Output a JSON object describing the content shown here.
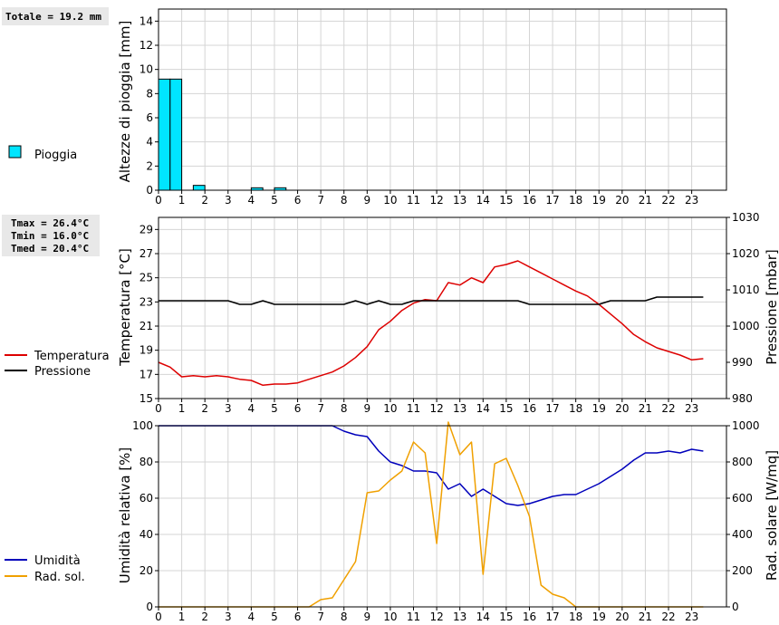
{
  "summary": {
    "rain_total": "Totale = 19.2 mm",
    "tmax": "Tmax = 26.4°C",
    "tmin": "Tmin = 16.0°C",
    "tmed": "Tmed = 20.4°C"
  },
  "colors": {
    "rain": "#00e5ff",
    "temperature": "#dd0000",
    "pressure": "#000000",
    "humidity": "#0000bb",
    "radiation": "#f0a000",
    "summary_bg": "#e8e8e8"
  },
  "chart_data": [
    {
      "type": "bar",
      "ylabel": "Altezze di pioggia [mm]",
      "ylim": [
        0,
        15
      ],
      "yticks": [
        0,
        2,
        4,
        6,
        8,
        10,
        12,
        14
      ],
      "xlim": [
        0,
        24.5
      ],
      "xticks": [
        0,
        1,
        2,
        3,
        4,
        5,
        6,
        7,
        8,
        9,
        10,
        11,
        12,
        13,
        14,
        15,
        16,
        17,
        18,
        19,
        20,
        21,
        22,
        23
      ],
      "bar_width": 0.5,
      "legend": [
        "Pioggia"
      ],
      "series": [
        {
          "name": "Pioggia",
          "x": [
            0,
            0.5,
            1.5,
            4.0,
            5.0
          ],
          "values": [
            9.2,
            9.2,
            0.4,
            0.2,
            0.2
          ]
        }
      ]
    },
    {
      "type": "line",
      "ylabel": "Temperatura [°C]",
      "ylabel_right": "Pressione [mbar]",
      "ylim": [
        15,
        30
      ],
      "yticks": [
        15,
        17,
        19,
        21,
        23,
        25,
        27,
        29
      ],
      "ylim_right": [
        980,
        1030
      ],
      "yticks_right": [
        980,
        990,
        1000,
        1010,
        1020,
        1030
      ],
      "xlim": [
        0,
        24.5
      ],
      "xticks": [
        0,
        1,
        2,
        3,
        4,
        5,
        6,
        7,
        8,
        9,
        10,
        11,
        12,
        13,
        14,
        15,
        16,
        17,
        18,
        19,
        20,
        21,
        22,
        23
      ],
      "legend": [
        "Temperatura",
        "Pressione"
      ],
      "series": [
        {
          "name": "Temperatura",
          "axis": "left",
          "x": [
            0,
            0.5,
            1,
            1.5,
            2,
            2.5,
            3,
            3.5,
            4,
            4.5,
            5,
            5.5,
            6,
            6.5,
            7,
            7.5,
            8,
            8.5,
            9,
            9.5,
            10,
            10.5,
            11,
            11.5,
            12,
            12.5,
            13,
            13.5,
            14,
            14.5,
            15,
            15.5,
            16,
            16.5,
            17,
            17.5,
            18,
            18.5,
            19,
            19.5,
            20,
            20.5,
            21,
            21.5,
            22,
            22.5,
            23,
            23.5
          ],
          "values": [
            18.0,
            17.6,
            16.8,
            16.9,
            16.8,
            16.9,
            16.8,
            16.6,
            16.5,
            16.1,
            16.2,
            16.2,
            16.3,
            16.6,
            16.9,
            17.2,
            17.7,
            18.4,
            19.3,
            20.7,
            21.4,
            22.3,
            22.9,
            23.2,
            23.1,
            24.6,
            24.4,
            25.0,
            24.6,
            25.9,
            26.1,
            26.4,
            25.9,
            25.4,
            24.9,
            24.4,
            23.9,
            23.5,
            22.8,
            22.0,
            21.2,
            20.3,
            19.7,
            19.2,
            18.9,
            18.6,
            18.2,
            18.3
          ]
        },
        {
          "name": "Pressione",
          "axis": "right",
          "x": [
            0,
            0.5,
            1,
            1.5,
            2,
            2.5,
            3,
            3.5,
            4,
            4.5,
            5,
            5.5,
            6,
            6.5,
            7,
            7.5,
            8,
            8.5,
            9,
            9.5,
            10,
            10.5,
            11,
            11.5,
            12,
            12.5,
            13,
            13.5,
            14,
            14.5,
            15,
            15.5,
            16,
            16.5,
            17,
            17.5,
            18,
            18.5,
            19,
            19.5,
            20,
            20.5,
            21,
            21.5,
            22,
            22.5,
            23,
            23.5
          ],
          "values": [
            1007,
            1007,
            1007,
            1007,
            1007,
            1007,
            1007,
            1006,
            1006,
            1007,
            1006,
            1006,
            1006,
            1006,
            1006,
            1006,
            1006,
            1007,
            1006,
            1007,
            1006,
            1006,
            1007,
            1007,
            1007,
            1007,
            1007,
            1007,
            1007,
            1007,
            1007,
            1007,
            1006,
            1006,
            1006,
            1006,
            1006,
            1006,
            1006,
            1007,
            1007,
            1007,
            1007,
            1008,
            1008,
            1008,
            1008,
            1008
          ]
        }
      ]
    },
    {
      "type": "line",
      "ylabel": "Umidità relativa [%]",
      "ylabel_right": "Rad. solare [W/mq]",
      "ylim": [
        0,
        100
      ],
      "yticks": [
        0,
        20,
        40,
        60,
        80,
        100
      ],
      "ylim_right": [
        0,
        1000
      ],
      "yticks_right": [
        0,
        200,
        400,
        600,
        800,
        1000
      ],
      "xlim": [
        0,
        24.5
      ],
      "xticks": [
        0,
        1,
        2,
        3,
        4,
        5,
        6,
        7,
        8,
        9,
        10,
        11,
        12,
        13,
        14,
        15,
        16,
        17,
        18,
        19,
        20,
        21,
        22,
        23
      ],
      "legend": [
        "Umidità",
        "Rad. sol."
      ],
      "series": [
        {
          "name": "Umidità",
          "axis": "left",
          "x": [
            0,
            0.5,
            1,
            1.5,
            2,
            2.5,
            3,
            3.5,
            4,
            4.5,
            5,
            5.5,
            6,
            6.5,
            7,
            7.5,
            8,
            8.5,
            9,
            9.5,
            10,
            10.5,
            11,
            11.5,
            12,
            12.5,
            13,
            13.5,
            14,
            14.5,
            15,
            15.5,
            16,
            16.5,
            17,
            17.5,
            18,
            18.5,
            19,
            19.5,
            20,
            20.5,
            21,
            21.5,
            22,
            22.5,
            23,
            23.5
          ],
          "values": [
            100,
            100,
            100,
            100,
            100,
            100,
            100,
            100,
            100,
            100,
            100,
            100,
            100,
            100,
            100,
            100,
            97,
            95,
            94,
            86,
            80,
            78,
            75,
            75,
            74,
            65,
            68,
            61,
            65,
            61,
            57,
            56,
            57,
            59,
            61,
            62,
            62,
            65,
            68,
            72,
            76,
            81,
            85,
            85,
            86,
            85,
            87,
            86
          ]
        },
        {
          "name": "Rad. sol.",
          "axis": "right",
          "x": [
            0,
            0.5,
            1,
            1.5,
            2,
            2.5,
            3,
            3.5,
            4,
            4.5,
            5,
            5.5,
            6,
            6.5,
            7,
            7.5,
            8,
            8.5,
            9,
            9.5,
            10,
            10.5,
            11,
            11.5,
            12,
            12.5,
            13,
            13.5,
            14,
            14.5,
            15,
            15.5,
            16,
            16.5,
            17,
            17.5,
            18,
            18.5,
            19,
            19.5,
            20,
            20.5,
            21,
            21.5,
            22,
            22.5,
            23,
            23.5
          ],
          "values": [
            0,
            0,
            0,
            0,
            0,
            0,
            0,
            0,
            0,
            0,
            0,
            0,
            0,
            0,
            40,
            50,
            150,
            250,
            630,
            640,
            700,
            750,
            910,
            850,
            350,
            1020,
            840,
            910,
            180,
            790,
            820,
            670,
            500,
            120,
            70,
            50,
            0,
            0,
            0,
            0,
            0,
            0,
            0,
            0,
            0,
            0,
            0,
            0
          ]
        }
      ]
    }
  ]
}
